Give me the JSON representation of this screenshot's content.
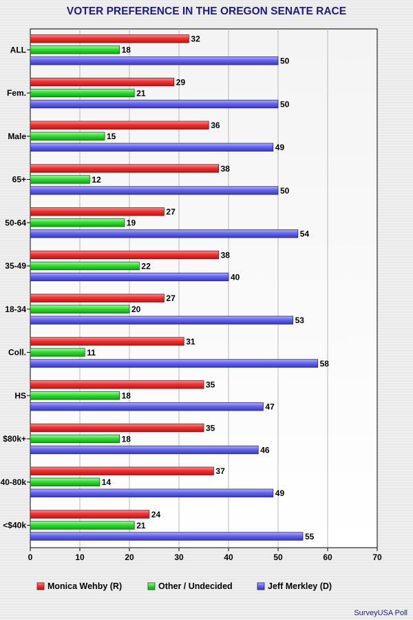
{
  "chart_data": {
    "type": "bar",
    "orientation": "horizontal",
    "title": "VOTER PREFERENCE IN THE OREGON SENATE RACE",
    "categories": [
      "ALL",
      "Fem.",
      "Male",
      "65+",
      "50-64",
      "35-49",
      "18-34",
      "Coll.",
      "HS",
      "$80k+",
      "40-80k",
      "<$40k"
    ],
    "series": [
      {
        "name": "Monica Wehby (R)",
        "color": "#ee3333",
        "values": [
          32,
          29,
          36,
          38,
          27,
          38,
          27,
          31,
          35,
          35,
          37,
          24
        ]
      },
      {
        "name": "Other / Undecided",
        "color": "#33dd33",
        "values": [
          18,
          21,
          15,
          12,
          19,
          22,
          20,
          11,
          18,
          18,
          14,
          21
        ]
      },
      {
        "name": "Jeff Merkley (D)",
        "color": "#6666ee",
        "values": [
          50,
          50,
          49,
          50,
          54,
          40,
          53,
          58,
          47,
          46,
          49,
          55
        ]
      }
    ],
    "xlim": [
      0,
      70
    ],
    "xticks": [
      0,
      10,
      20,
      30,
      40,
      50,
      60,
      70
    ],
    "grid": true,
    "legend_position": "bottom",
    "source": "SurveyUSA Poll"
  }
}
